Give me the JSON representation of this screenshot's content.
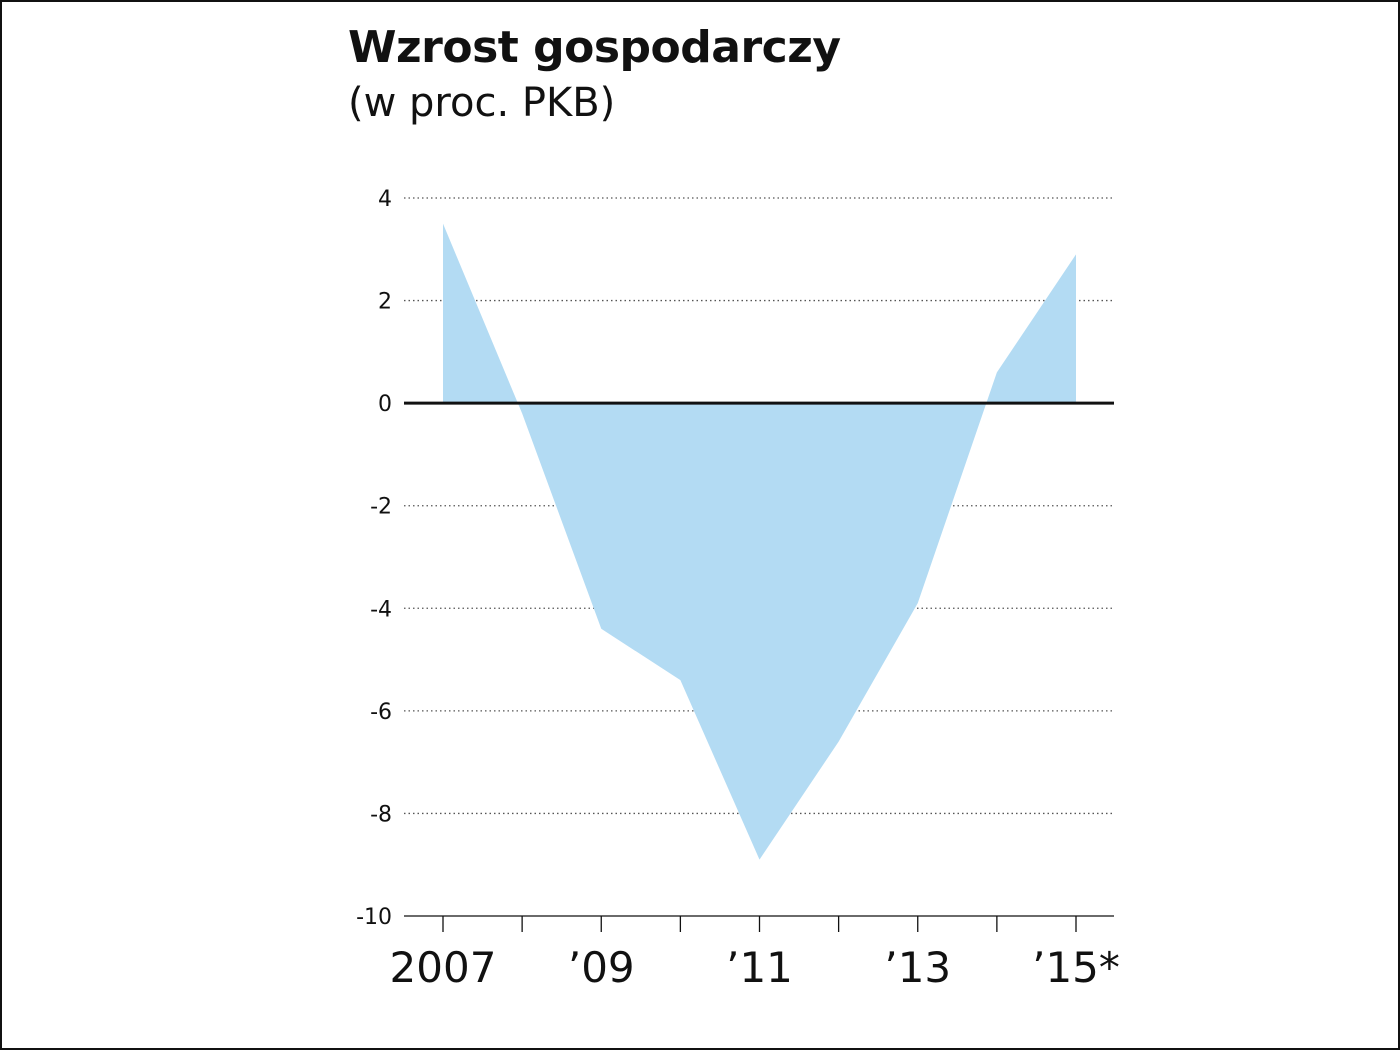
{
  "chart_data": {
    "type": "area",
    "title": "Wzrost gospodarczy",
    "subtitle": "(w proc. PKB)",
    "x": [
      2007,
      2008,
      2009,
      2010,
      2011,
      2012,
      2013,
      2014,
      2015
    ],
    "x_tick_labels": [
      {
        "x": 2007,
        "label": "2007"
      },
      {
        "x": 2009,
        "label": "’09"
      },
      {
        "x": 2011,
        "label": "’11"
      },
      {
        "x": 2013,
        "label": "’13"
      },
      {
        "x": 2015,
        "label": "’15*"
      }
    ],
    "y_ticks": [
      {
        "y": 4,
        "label": "4"
      },
      {
        "y": 2,
        "label": "2"
      },
      {
        "y": 0,
        "label": "0"
      },
      {
        "y": -2,
        "label": "-2"
      },
      {
        "y": -4,
        "label": "-4"
      },
      {
        "y": -6,
        "label": "-6"
      },
      {
        "y": -8,
        "label": "-8"
      },
      {
        "y": -10,
        "label": "-10"
      }
    ],
    "series": [
      {
        "values": [
          3.5,
          -0.2,
          -4.4,
          -5.4,
          -8.9,
          -6.6,
          -3.9,
          0.6,
          2.9
        ]
      }
    ],
    "xlim": [
      2006.5,
      2015.5
    ],
    "ylim": [
      -10,
      4
    ],
    "grid": true,
    "colors": {
      "area": "#b3dbf3",
      "zero_line": "#111111",
      "grid": "#555555"
    }
  }
}
